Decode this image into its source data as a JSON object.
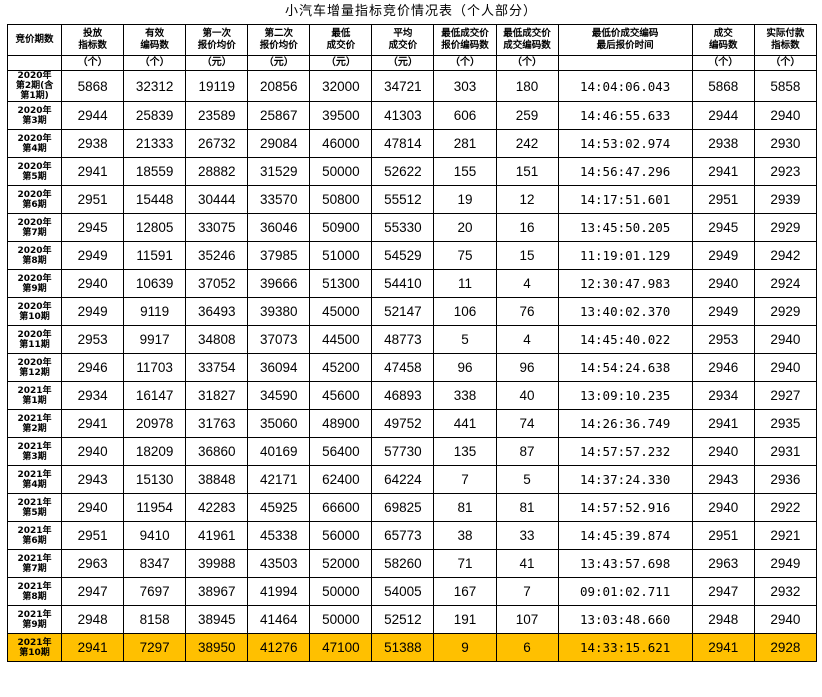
{
  "title": "小汽车增量指标竞价情况表（个人部分）",
  "headers": [
    "竞价期数",
    "投放\n指标数",
    "有效\n编码数",
    "第一次\n报价均价",
    "第二次\n报价均价",
    "最低\n成交价",
    "平均\n成交价",
    "最低成交价\n报价编码数",
    "最低成交价\n成交编码数",
    "最低价成交编码\n最后报价时间",
    "成交\n编码数",
    "实际付款\n指标数"
  ],
  "units": [
    "",
    "（个）",
    "（个）",
    "（元）",
    "（元）",
    "（元）",
    "（元）",
    "（个）",
    "（个）",
    "",
    "（个）",
    "（个）"
  ],
  "rows": [
    {
      "period": "2020年\n第2期(含\n第1期)",
      "quota": "5868",
      "valid": "32312",
      "bid1": "19119",
      "bid2": "20856",
      "min_price": "32000",
      "avg_price": "34721",
      "min_bid_codes": "303",
      "min_deal_codes": "180",
      "time": "14:04:06.043",
      "deal_codes": "5868",
      "paid": "5858"
    },
    {
      "period": "2020年\n第3期",
      "quota": "2944",
      "valid": "25839",
      "bid1": "23589",
      "bid2": "25867",
      "min_price": "39500",
      "avg_price": "41303",
      "min_bid_codes": "606",
      "min_deal_codes": "259",
      "time": "14:46:55.633",
      "deal_codes": "2944",
      "paid": "2940"
    },
    {
      "period": "2020年\n第4期",
      "quota": "2938",
      "valid": "21333",
      "bid1": "26732",
      "bid2": "29084",
      "min_price": "46000",
      "avg_price": "47814",
      "min_bid_codes": "281",
      "min_deal_codes": "242",
      "time": "14:53:02.974",
      "deal_codes": "2938",
      "paid": "2930"
    },
    {
      "period": "2020年\n第5期",
      "quota": "2941",
      "valid": "18559",
      "bid1": "28882",
      "bid2": "31529",
      "min_price": "50000",
      "avg_price": "52622",
      "min_bid_codes": "155",
      "min_deal_codes": "151",
      "time": "14:56:47.296",
      "deal_codes": "2941",
      "paid": "2923"
    },
    {
      "period": "2020年\n第6期",
      "quota": "2951",
      "valid": "15448",
      "bid1": "30444",
      "bid2": "33570",
      "min_price": "50800",
      "avg_price": "55512",
      "min_bid_codes": "19",
      "min_deal_codes": "12",
      "time": "14:17:51.601",
      "deal_codes": "2951",
      "paid": "2939"
    },
    {
      "period": "2020年\n第7期",
      "quota": "2945",
      "valid": "12805",
      "bid1": "33075",
      "bid2": "36046",
      "min_price": "50900",
      "avg_price": "55330",
      "min_bid_codes": "20",
      "min_deal_codes": "16",
      "time": "13:45:50.205",
      "deal_codes": "2945",
      "paid": "2929"
    },
    {
      "period": "2020年\n第8期",
      "quota": "2949",
      "valid": "11591",
      "bid1": "35246",
      "bid2": "37985",
      "min_price": "51000",
      "avg_price": "54529",
      "min_bid_codes": "75",
      "min_deal_codes": "15",
      "time": "11:19:01.129",
      "deal_codes": "2949",
      "paid": "2942"
    },
    {
      "period": "2020年\n第9期",
      "quota": "2940",
      "valid": "10639",
      "bid1": "37052",
      "bid2": "39666",
      "min_price": "51300",
      "avg_price": "54410",
      "min_bid_codes": "11",
      "min_deal_codes": "4",
      "time": "12:30:47.983",
      "deal_codes": "2940",
      "paid": "2924"
    },
    {
      "period": "2020年\n第10期",
      "quota": "2949",
      "valid": "9119",
      "bid1": "36493",
      "bid2": "39380",
      "min_price": "45000",
      "avg_price": "52147",
      "min_bid_codes": "106",
      "min_deal_codes": "76",
      "time": "13:40:02.370",
      "deal_codes": "2949",
      "paid": "2929"
    },
    {
      "period": "2020年\n第11期",
      "quota": "2953",
      "valid": "9917",
      "bid1": "34808",
      "bid2": "37073",
      "min_price": "44500",
      "avg_price": "48773",
      "min_bid_codes": "5",
      "min_deal_codes": "4",
      "time": "14:45:40.022",
      "deal_codes": "2953",
      "paid": "2940"
    },
    {
      "period": "2020年\n第12期",
      "quota": "2946",
      "valid": "11703",
      "bid1": "33754",
      "bid2": "36094",
      "min_price": "45200",
      "avg_price": "47458",
      "min_bid_codes": "96",
      "min_deal_codes": "96",
      "time": "14:54:24.638",
      "deal_codes": "2946",
      "paid": "2940"
    },
    {
      "period": "2021年\n第1期",
      "quota": "2934",
      "valid": "16147",
      "bid1": "31827",
      "bid2": "34590",
      "min_price": "45600",
      "avg_price": "46893",
      "min_bid_codes": "338",
      "min_deal_codes": "40",
      "time": "13:09:10.235",
      "deal_codes": "2934",
      "paid": "2927"
    },
    {
      "period": "2021年\n第2期",
      "quota": "2941",
      "valid": "20978",
      "bid1": "31763",
      "bid2": "35060",
      "min_price": "48900",
      "avg_price": "49752",
      "min_bid_codes": "441",
      "min_deal_codes": "74",
      "time": "14:26:36.749",
      "deal_codes": "2941",
      "paid": "2935"
    },
    {
      "period": "2021年\n第3期",
      "quota": "2940",
      "valid": "18209",
      "bid1": "36860",
      "bid2": "40169",
      "min_price": "56400",
      "avg_price": "57730",
      "min_bid_codes": "135",
      "min_deal_codes": "87",
      "time": "14:57:57.232",
      "deal_codes": "2940",
      "paid": "2931"
    },
    {
      "period": "2021年\n第4期",
      "quota": "2943",
      "valid": "15130",
      "bid1": "38848",
      "bid2": "42171",
      "min_price": "62400",
      "avg_price": "64224",
      "min_bid_codes": "7",
      "min_deal_codes": "5",
      "time": "14:37:24.330",
      "deal_codes": "2943",
      "paid": "2936"
    },
    {
      "period": "2021年\n第5期",
      "quota": "2940",
      "valid": "11954",
      "bid1": "42283",
      "bid2": "45925",
      "min_price": "66600",
      "avg_price": "69825",
      "min_bid_codes": "81",
      "min_deal_codes": "81",
      "time": "14:57:52.916",
      "deal_codes": "2940",
      "paid": "2922"
    },
    {
      "period": "2021年\n第6期",
      "quota": "2951",
      "valid": "9410",
      "bid1": "41961",
      "bid2": "45338",
      "min_price": "56000",
      "avg_price": "65773",
      "min_bid_codes": "38",
      "min_deal_codes": "33",
      "time": "14:45:39.874",
      "deal_codes": "2951",
      "paid": "2921"
    },
    {
      "period": "2021年\n第7期",
      "quota": "2963",
      "valid": "8347",
      "bid1": "39988",
      "bid2": "43503",
      "min_price": "52000",
      "avg_price": "58260",
      "min_bid_codes": "71",
      "min_deal_codes": "41",
      "time": "13:43:57.698",
      "deal_codes": "2963",
      "paid": "2949"
    },
    {
      "period": "2021年\n第8期",
      "quota": "2947",
      "valid": "7697",
      "bid1": "38967",
      "bid2": "41994",
      "min_price": "50000",
      "avg_price": "54005",
      "min_bid_codes": "167",
      "min_deal_codes": "7",
      "time": "09:01:02.711",
      "deal_codes": "2947",
      "paid": "2932"
    },
    {
      "period": "2021年\n第9期",
      "quota": "2948",
      "valid": "8158",
      "bid1": "38945",
      "bid2": "41464",
      "min_price": "50000",
      "avg_price": "52512",
      "min_bid_codes": "191",
      "min_deal_codes": "107",
      "time": "13:03:48.660",
      "deal_codes": "2948",
      "paid": "2940"
    },
    {
      "period": "2021年\n第10期",
      "quota": "2941",
      "valid": "7297",
      "bid1": "38950",
      "bid2": "41276",
      "min_price": "47100",
      "avg_price": "51388",
      "min_bid_codes": "9",
      "min_deal_codes": "6",
      "time": "14:33:15.621",
      "deal_codes": "2941",
      "paid": "2928"
    }
  ],
  "highlight_row": 20,
  "highlight_color": "#ffc000"
}
